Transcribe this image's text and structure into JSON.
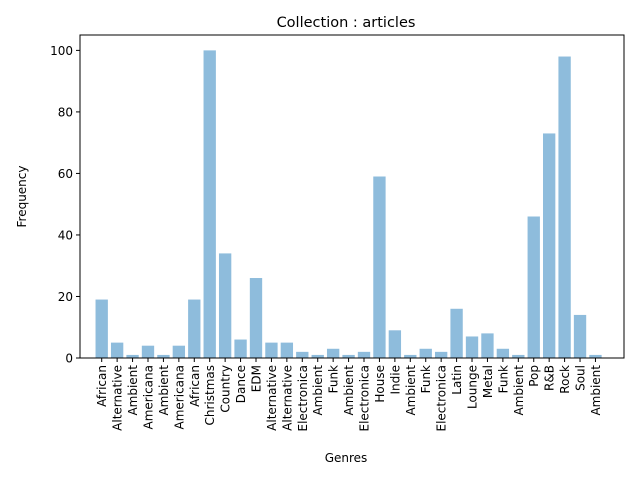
{
  "chart_data": {
    "type": "bar",
    "title": "Collection : articles",
    "xlabel": "Genres",
    "ylabel": "Frequency",
    "ylim": [
      0,
      105
    ],
    "yticks": [
      0,
      20,
      40,
      60,
      80,
      100
    ],
    "grid": false,
    "bar_color": "#8ebcdc",
    "categories": [
      "African",
      "Alternative",
      "Ambient",
      "Americana",
      "Ambient",
      "Americana",
      "African",
      "Christmas",
      "Country",
      "Dance",
      "EDM",
      "Alternative",
      "Alternative",
      "Electronica",
      "Ambient",
      "Funk",
      "Ambient",
      "Electronica",
      "House",
      "Indie",
      "Ambient",
      "Funk",
      "Electronica",
      "Latin",
      "Lounge",
      "Metal",
      "Funk",
      "Ambient",
      "Pop",
      "R&B",
      "Rock",
      "Soul",
      "Ambient"
    ],
    "values": [
      19,
      5,
      1,
      4,
      1,
      4,
      19,
      100,
      34,
      6,
      26,
      5,
      5,
      2,
      1,
      3,
      1,
      2,
      59,
      9,
      1,
      3,
      2,
      16,
      7,
      8,
      3,
      1,
      46,
      73,
      98,
      14,
      1
    ]
  }
}
